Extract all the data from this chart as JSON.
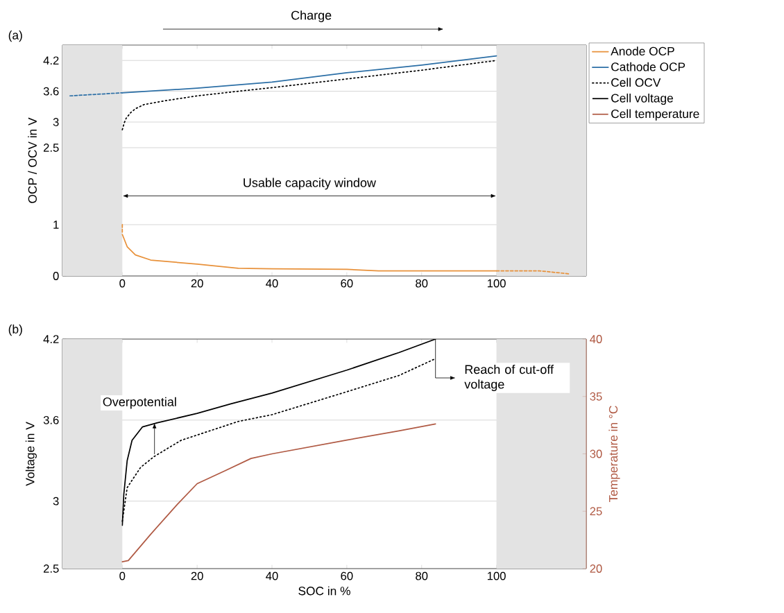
{
  "chart_data": [
    {
      "type": "line",
      "title": "(a)",
      "ylabel": "OCP / OCV in V",
      "xlim": [
        -16,
        124
      ],
      "ylim": [
        0,
        4.5
      ],
      "xticks": [
        0,
        20,
        40,
        60,
        80,
        100
      ],
      "yticks": [
        0,
        1,
        2.5,
        3,
        3.6,
        4.2
      ],
      "grid": "y",
      "legend": "right",
      "annotations": [
        "Charge",
        "Usable capacity window"
      ],
      "bands": [
        {
          "axis": "x",
          "from": -16,
          "to": 0,
          "color": "#e3e3e3"
        },
        {
          "axis": "x",
          "from": 100,
          "to": 124,
          "color": "#e3e3e3"
        }
      ],
      "series": [
        {
          "name": "Anode OCP",
          "color": "#e8913a",
          "line_style": "solid",
          "x": [
            0,
            1.3,
            3.5,
            7.6,
            20,
            31,
            40,
            60,
            68.5,
            100
          ],
          "values": [
            0.81,
            0.57,
            0.41,
            0.31,
            0.23,
            0.15,
            0.14,
            0.13,
            0.1,
            0.1
          ]
        },
        {
          "color": "#e8913a",
          "line_style": "dashed",
          "x": [
            0,
            0
          ],
          "values": [
            1.0,
            0.85
          ]
        },
        {
          "color": "#e8913a",
          "line_style": "dashed",
          "x": [
            100,
            111.5,
            119.6
          ],
          "values": [
            0.1,
            0.1,
            0.04
          ]
        },
        {
          "name": "Cathode OCP",
          "color": "#2c6fa6",
          "line_style": "solid",
          "x": [
            0,
            20,
            40,
            60,
            80,
            100
          ],
          "values": [
            3.57,
            3.66,
            3.78,
            3.96,
            4.11,
            4.29
          ]
        },
        {
          "color": "#2c6fa6",
          "line_style": "dashed",
          "x": [
            -14,
            0
          ],
          "values": [
            3.51,
            3.57
          ]
        },
        {
          "name": "Cell OCV",
          "color": "#000000",
          "line_style": "dotted",
          "x": [
            0,
            0.5,
            1,
            2.2,
            3.5,
            5.8,
            11,
            20,
            31,
            40,
            60,
            80,
            100
          ],
          "values": [
            2.85,
            2.98,
            3.07,
            3.18,
            3.26,
            3.34,
            3.41,
            3.51,
            3.6,
            3.67,
            3.84,
            4.01,
            4.2
          ]
        }
      ]
    },
    {
      "type": "line",
      "title": "(b)",
      "xlabel": "SOC in %",
      "ylabel": "Voltage in V",
      "y2label": "Temperature in °C",
      "xlim": [
        -16,
        124
      ],
      "ylim": [
        2.5,
        4.2
      ],
      "y2lim": [
        20,
        40
      ],
      "xticks": [
        0,
        20,
        40,
        60,
        80,
        100
      ],
      "yticks": [
        2.5,
        3,
        3.6,
        4.2
      ],
      "y2ticks": [
        20,
        25,
        30,
        35,
        40
      ],
      "grid": "y",
      "annotations": [
        {
          "text": "Overpotential",
          "x": 8.6,
          "y": 3.58
        },
        {
          "text": "Reach of cut-off voltage",
          "x": 83.7,
          "y": 4.2
        }
      ],
      "bands": [
        {
          "axis": "x",
          "from": -16,
          "to": 0,
          "color": "#e3e3e3"
        },
        {
          "axis": "x",
          "from": 100,
          "to": 124,
          "color": "#e3e3e3"
        }
      ],
      "series": [
        {
          "name": "Cell voltage",
          "color": "#000000",
          "line_style": "solid",
          "x": [
            0,
            0.4,
            1.3,
            2.6,
            5.4,
            9.4,
            20,
            29,
            40,
            60,
            73.9,
            83.7
          ],
          "values": [
            2.82,
            3.05,
            3.3,
            3.45,
            3.55,
            3.58,
            3.65,
            3.72,
            3.8,
            3.97,
            4.1,
            4.2
          ]
        },
        {
          "color": "#000000",
          "line_style": "dotted",
          "x": [
            0,
            1.3,
            4.9,
            8.5,
            15.7,
            31,
            40,
            60,
            73.9,
            83.3
          ],
          "values": [
            2.85,
            3.1,
            3.25,
            3.33,
            3.45,
            3.59,
            3.64,
            3.81,
            3.93,
            4.05
          ]
        },
        {
          "name": "Cell temperature",
          "color": "#b05a44",
          "line_style": "solid",
          "axis": "y2",
          "x": [
            0,
            1.6,
            7.6,
            14.7,
            20,
            27.3,
            34.4,
            40,
            60,
            73.9,
            83.7
          ],
          "values": [
            20.6,
            20.7,
            23.0,
            25.6,
            27.4,
            28.5,
            29.6,
            30.0,
            31.2,
            32.0,
            32.6
          ]
        }
      ]
    }
  ]
}
